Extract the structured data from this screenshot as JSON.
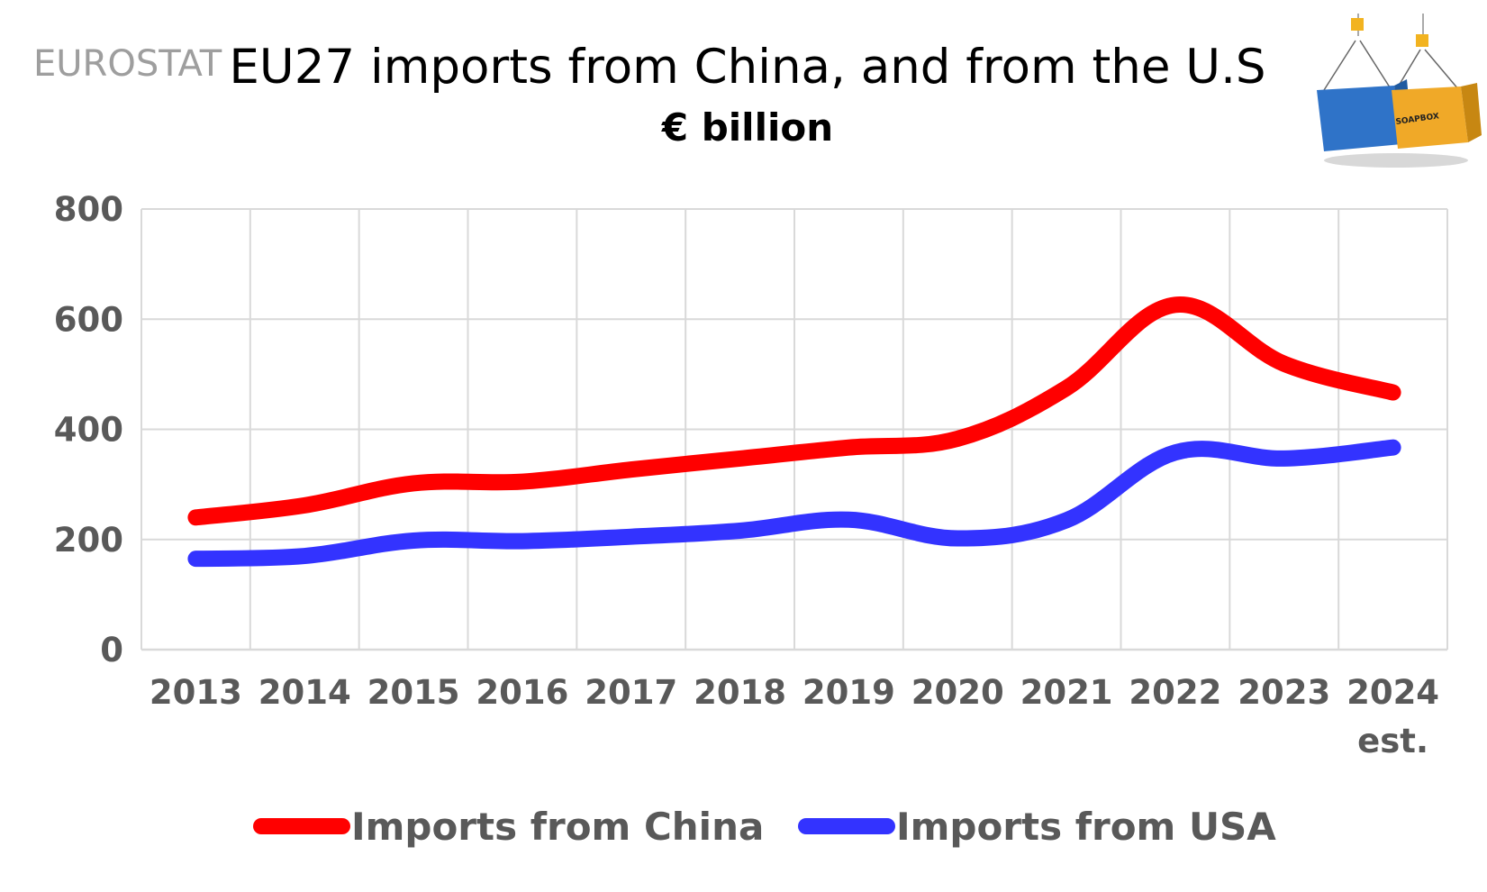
{
  "source_label": "EUROSTAT",
  "logo_text": "SOAPBOX",
  "colors": {
    "china": "#ff0000",
    "usa": "#3333ff",
    "grid": "#d9d9d9",
    "tick": "#595959"
  },
  "chart_data": {
    "type": "line",
    "title": "EU27 imports from China, and from the U.S",
    "subtitle": "€ billion",
    "categories": [
      "2013",
      "2014",
      "2015",
      "2016",
      "2017",
      "2018",
      "2019",
      "2020",
      "2021",
      "2022",
      "2023",
      "2024"
    ],
    "category_sublabels": [
      "",
      "",
      "",
      "",
      "",
      "",
      "",
      "",
      "",
      "",
      "",
      "est."
    ],
    "y_ticks": [
      "0",
      "200",
      "400",
      "600",
      "800"
    ],
    "ylim": [
      0,
      800
    ],
    "grid": true,
    "legend_position": "bottom",
    "series": [
      {
        "name": "Imports from China",
        "color": "#ff0000",
        "values": [
          240,
          262,
          302,
          305,
          327,
          347,
          367,
          383,
          475,
          626,
          519,
          467
        ]
      },
      {
        "name": "Imports from USA",
        "color": "#3333ff",
        "values": [
          165,
          170,
          198,
          197,
          205,
          216,
          236,
          202,
          235,
          358,
          347,
          367
        ]
      }
    ]
  }
}
